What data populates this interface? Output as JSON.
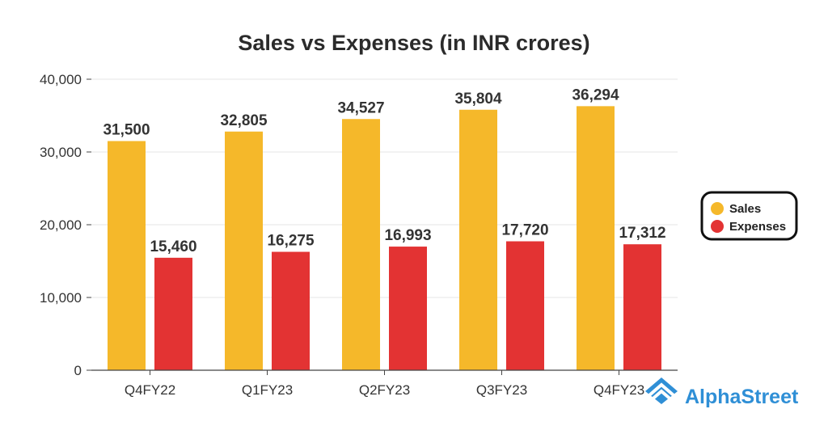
{
  "chart_data": {
    "type": "bar",
    "title": "Sales vs Expenses (in INR crores)",
    "categories": [
      "Q4FY22",
      "Q1FY23",
      "Q2FY23",
      "Q3FY23",
      "Q4FY23"
    ],
    "series": [
      {
        "name": "Sales",
        "values": [
          31500,
          32805,
          34527,
          35804,
          36294
        ],
        "labels": [
          "31,500",
          "32,805",
          "34,527",
          "35,804",
          "36,294"
        ]
      },
      {
        "name": "Expenses",
        "values": [
          15460,
          16275,
          16993,
          17720,
          17312
        ],
        "labels": [
          "15,460",
          "16,275",
          "16,993",
          "17,720",
          "17,312"
        ]
      }
    ],
    "ylim": [
      0,
      40000
    ],
    "yticks": [
      0,
      10000,
      20000,
      30000,
      40000
    ],
    "ytick_labels": [
      "0",
      "10,000",
      "20,000",
      "30,000",
      "40,000"
    ],
    "xlabel": "",
    "ylabel": "",
    "grid": true,
    "legend_position": "right"
  },
  "colors": {
    "Sales": "#f5b82a",
    "Expenses": "#e33333",
    "grid": "#e4e4e4",
    "axis": "#444444"
  },
  "brand": {
    "name": "AlphaStreet",
    "icon": "alphastreet-logo-icon"
  }
}
